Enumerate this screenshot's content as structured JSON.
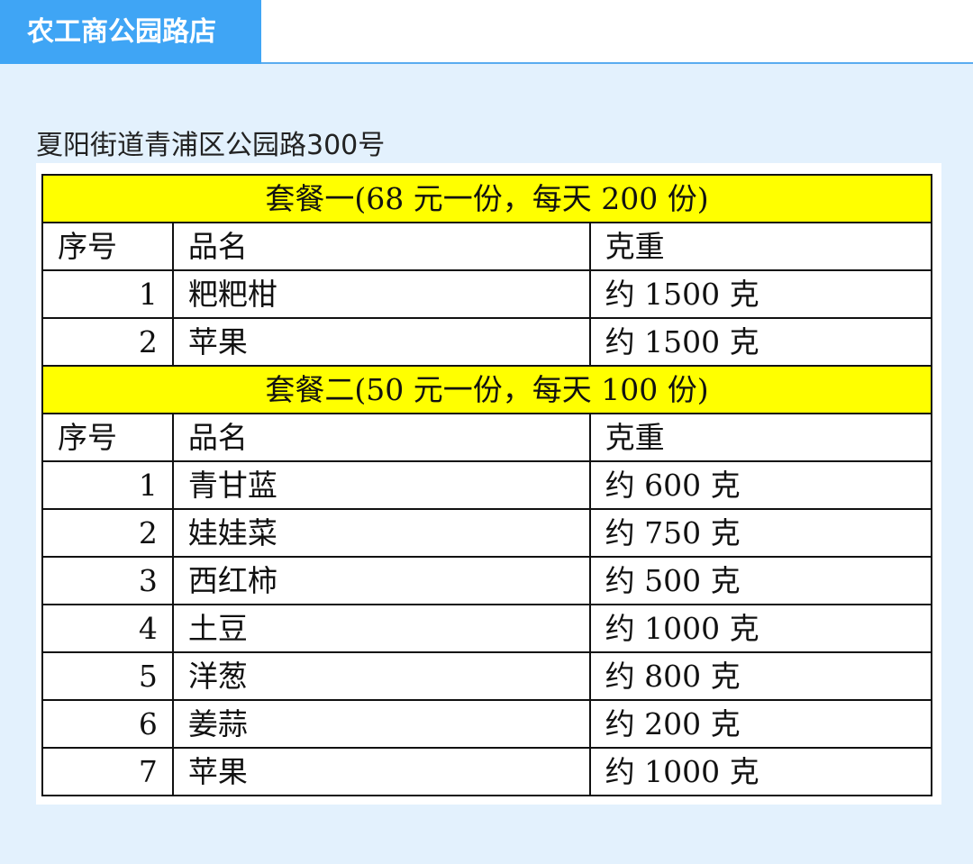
{
  "header": {
    "title": "农工商公园路店"
  },
  "address": "夏阳街道青浦区公园路300号",
  "highlight_color": "#ffff00",
  "packages": [
    {
      "title": "套餐一(68 元一份，每天 200 份)",
      "columns": [
        "序号",
        "品名",
        "克重"
      ],
      "rows": [
        [
          "1",
          "粑粑柑",
          "约 1500 克"
        ],
        [
          "2",
          "苹果",
          "约 1500 克"
        ]
      ]
    },
    {
      "title": "套餐二(50 元一份，每天 100 份)",
      "columns": [
        "序号",
        "品名",
        "克重"
      ],
      "rows": [
        [
          "1",
          "青甘蓝",
          "约 600 克"
        ],
        [
          "2",
          "娃娃菜",
          "约 750 克"
        ],
        [
          "3",
          "西红柿",
          "约 500 克"
        ],
        [
          "4",
          "土豆",
          "约 1000 克"
        ],
        [
          "5",
          "洋葱",
          "约 800 克"
        ],
        [
          "6",
          "姜蒜",
          "约 200 克"
        ],
        [
          "7",
          "苹果",
          "约 1000 克"
        ]
      ]
    }
  ]
}
